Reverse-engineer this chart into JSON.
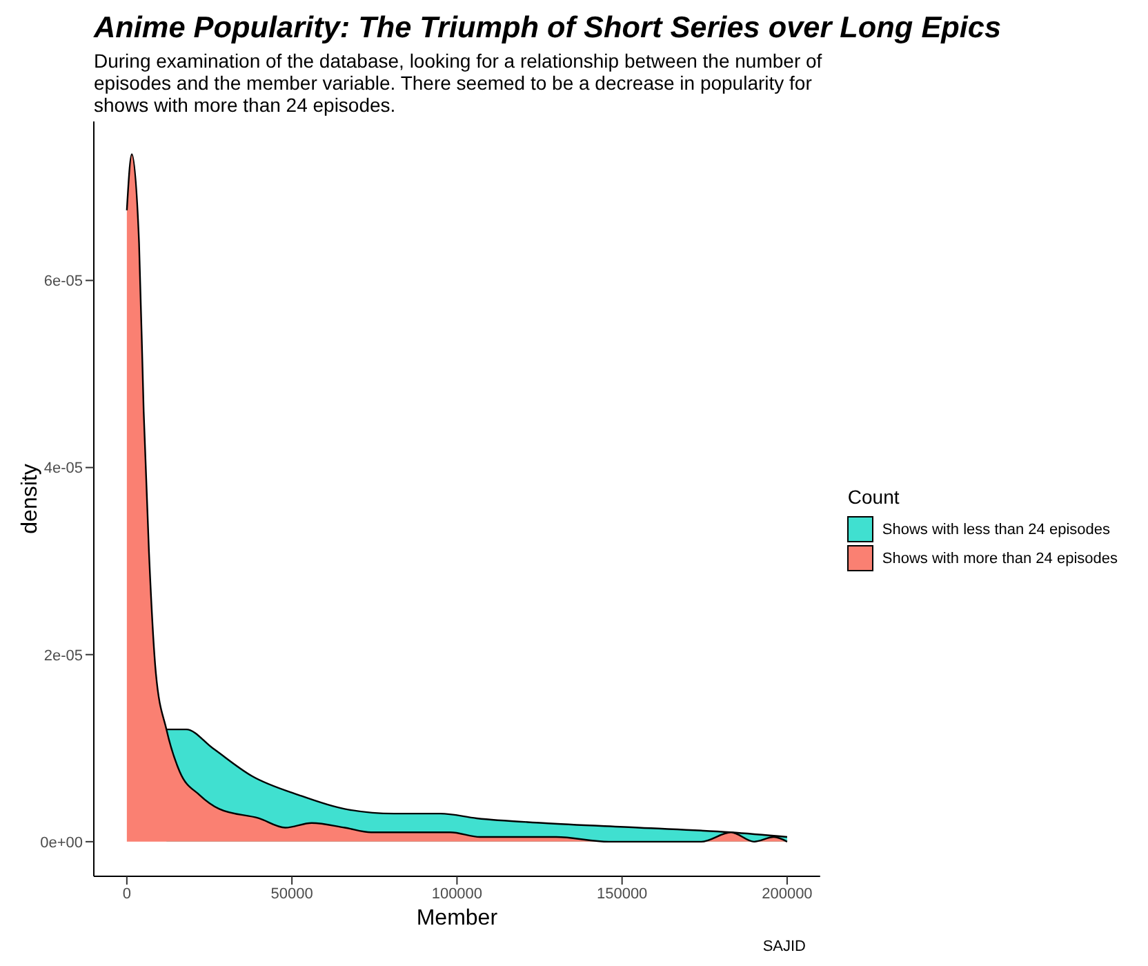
{
  "chart_data": {
    "type": "area",
    "title": "Anime Popularity: The Triumph of Short Series over Long Epics",
    "subtitle": "During examination of the database, looking for a relationship between the number of episodes and the member variable. There seemed to be a decrease in popularity for shows with more than 24 episodes.",
    "xlabel": "Member",
    "ylabel": "density",
    "legend_title": "Count",
    "legend": "right",
    "grid": false,
    "xlim": [
      -10000,
      210000
    ],
    "xticks": [
      0,
      50000,
      100000,
      150000,
      200000
    ],
    "ylim": [
      -3.7e-06,
      7.7e-05
    ],
    "yticks": [
      {
        "value": 0,
        "label": "0e+00"
      },
      {
        "value": 2e-05,
        "label": "2e-05"
      },
      {
        "value": 4e-05,
        "label": "4e-05"
      },
      {
        "value": 6e-05,
        "label": "6e-05"
      }
    ],
    "series": [
      {
        "name": "Shows with less than 24 episodes",
        "color": "#40e0d0",
        "x": [
          12000,
          18000,
          26000,
          38000,
          52000,
          66000,
          81000,
          95000,
          106000,
          126000,
          155000,
          183000,
          200000
        ],
        "values": [
          1.2e-05,
          1.2e-05,
          1e-05,
          7e-06,
          5e-06,
          3.5e-06,
          3e-06,
          3e-06,
          2.5e-06,
          2e-06,
          1.5e-06,
          1e-06,
          5e-07
        ]
      },
      {
        "name": "Shows with more than 24 episodes",
        "color": "#fa8072",
        "x": [
          0,
          1500,
          3700,
          5100,
          6700,
          8800,
          12000,
          16000,
          22000,
          28000,
          40000,
          48000,
          56000,
          66000,
          74000,
          88000,
          98000,
          107000,
          112000,
          130000,
          146000,
          153000,
          164000,
          174000,
          183000,
          190000,
          196000,
          200000
        ],
        "values": [
          6.75e-05,
          7.35e-05,
          6.4e-05,
          4.6e-05,
          3.1e-05,
          1.8e-05,
          1.2e-05,
          7.5e-06,
          5e-06,
          3.5e-06,
          2.5e-06,
          1.5e-06,
          2e-06,
          1.5e-06,
          1e-06,
          1e-06,
          1e-06,
          5e-07,
          5e-07,
          5e-07,
          0,
          0,
          0,
          0,
          1e-06,
          0,
          5e-07,
          0
        ]
      }
    ],
    "annotations": [
      "SAJID"
    ]
  }
}
